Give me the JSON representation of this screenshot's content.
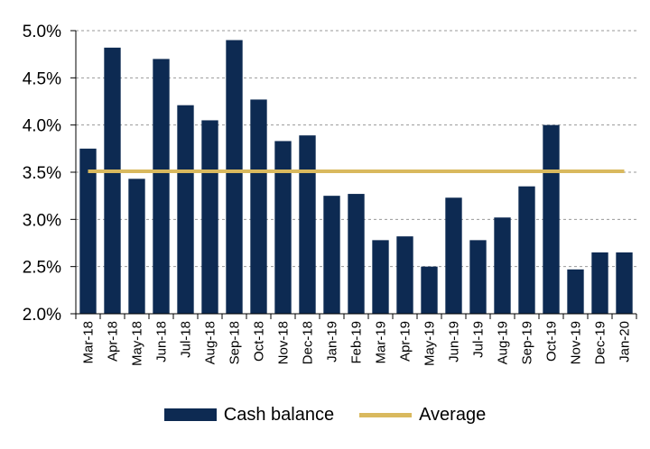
{
  "chart_data": {
    "type": "bar",
    "categories": [
      "Mar-18",
      "Apr-18",
      "May-18",
      "Jun-18",
      "Jul-18",
      "Aug-18",
      "Sep-18",
      "Oct-18",
      "Nov-18",
      "Dec-18",
      "Jan-19",
      "Feb-19",
      "Mar-19",
      "Apr-19",
      "May-19",
      "Jun-19",
      "Jul-19",
      "Aug-19",
      "Sep-19",
      "Oct-19",
      "Nov-19",
      "Dec-19",
      "Jan-20"
    ],
    "series": [
      {
        "name": "Cash balance",
        "type": "bar",
        "color": "#0d2a52",
        "values": [
          3.75,
          4.82,
          3.43,
          4.7,
          4.21,
          4.05,
          4.9,
          4.27,
          3.83,
          3.89,
          3.25,
          3.27,
          2.78,
          2.82,
          2.5,
          3.23,
          2.78,
          3.02,
          3.35,
          4.0,
          2.47,
          2.65,
          2.65
        ]
      },
      {
        "name": "Average",
        "type": "line",
        "color": "#d9b95e",
        "values": [
          3.51,
          3.51,
          3.51,
          3.51,
          3.51,
          3.51,
          3.51,
          3.51,
          3.51,
          3.51,
          3.51,
          3.51,
          3.51,
          3.51,
          3.51,
          3.51,
          3.51,
          3.51,
          3.51,
          3.51,
          3.51,
          3.51,
          3.51
        ]
      }
    ],
    "y_ticks": [
      "2.0%",
      "2.5%",
      "3.0%",
      "3.5%",
      "4.0%",
      "4.5%",
      "5.0%"
    ],
    "ylim": [
      2.0,
      5.0
    ],
    "y_unit": "%",
    "grid": "horizontal dashed",
    "legend_position": "bottom"
  }
}
